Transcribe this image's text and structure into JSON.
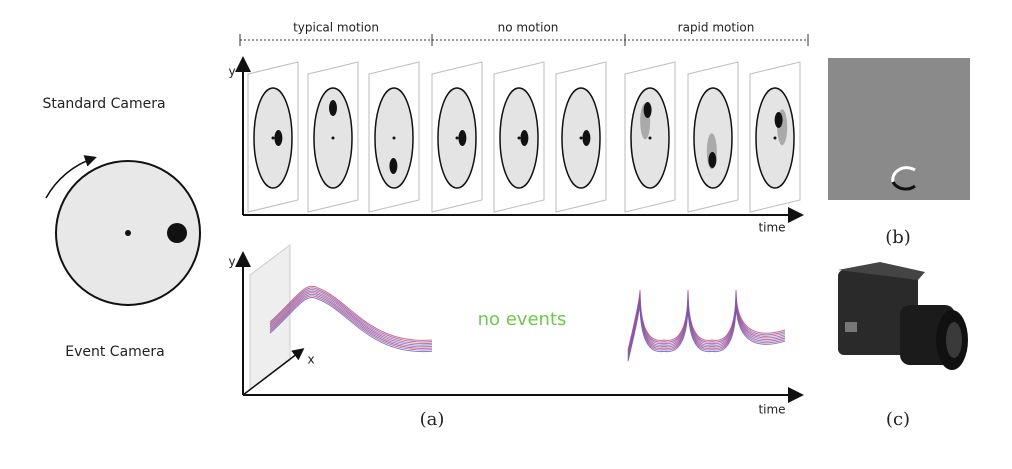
{
  "header": {
    "segments": [
      "typical motion",
      "no motion",
      "rapid motion"
    ]
  },
  "labels": {
    "standard_camera": "Standard Camera",
    "event_camera": "Event Camera"
  },
  "top_axes": {
    "y": "y",
    "time": "time"
  },
  "bottom_axes": {
    "y": "y",
    "x": "x",
    "time": "time"
  },
  "annotation": "no events",
  "captions": {
    "a": "(a)",
    "b": "(b)",
    "c": "(c)"
  }
}
